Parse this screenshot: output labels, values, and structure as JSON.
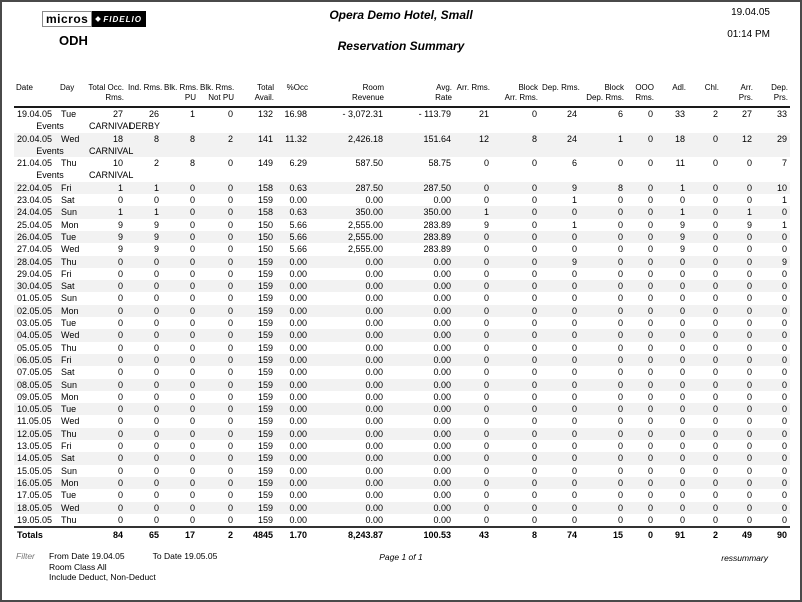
{
  "header": {
    "logo_micros": "micros",
    "logo_fidelio": "FIDELIO",
    "property_code": "ODH",
    "hotel_name": "Opera Demo Hotel, Small",
    "report_title": "Reservation Summary",
    "print_date": "19.04.05",
    "print_time": "01:14 PM"
  },
  "colors": {
    "shaded_row": "#f2f2f2",
    "page_border": "#4a4a4a",
    "logo_bg": "#000000"
  },
  "table": {
    "events_label": "Events",
    "totals_label": "Totals",
    "columns": [
      {
        "id": "date",
        "l1": "Date",
        "l2": "",
        "align": "al",
        "w": 44
      },
      {
        "id": "day",
        "l1": "Day",
        "l2": "",
        "align": "al",
        "w": 28
      },
      {
        "id": "total_occ_rms",
        "l1": "Total Occ.",
        "l2": "Rms.",
        "align": "ar",
        "w": 40
      },
      {
        "id": "ind_rms",
        "l1": "Ind. Rms.",
        "l2": "",
        "align": "ar",
        "w": 36
      },
      {
        "id": "blk_rms_pu",
        "l1": "Blk. Rms.",
        "l2": "PU",
        "align": "ar",
        "w": 36
      },
      {
        "id": "blk_rms_not_pu",
        "l1": "Blk. Rms.",
        "l2": "Not PU",
        "align": "ar",
        "w": 38
      },
      {
        "id": "total_avail",
        "l1": "Total",
        "l2": "Avail.",
        "align": "ar",
        "w": 40
      },
      {
        "id": "pct_occ",
        "l1": "%Occ",
        "l2": "",
        "align": "ar",
        "w": 34
      },
      {
        "id": "room_revenue",
        "l1": "Room",
        "l2": "Revenue",
        "align": "ar",
        "w": 76
      },
      {
        "id": "avg_rate",
        "l1": "Avg.",
        "l2": "Rate",
        "align": "ar",
        "w": 68
      },
      {
        "id": "arr_rms",
        "l1": "Arr. Rms.",
        "l2": "",
        "align": "ar",
        "w": 38
      },
      {
        "id": "block_arr_rms",
        "l1": "Block",
        "l2": "Arr. Rms.",
        "align": "ar",
        "w": 48
      },
      {
        "id": "dep_rms",
        "l1": "Dep. Rms.",
        "l2": "",
        "align": "ar",
        "w": 40
      },
      {
        "id": "block_dep_rms",
        "l1": "Block",
        "l2": "Dep. Rms.",
        "align": "ar",
        "w": 46
      },
      {
        "id": "ooo_rms",
        "l1": "OOO",
        "l2": "Rms.",
        "align": "ar",
        "w": 30
      },
      {
        "id": "adl",
        "l1": "Adl.",
        "l2": "",
        "align": "ar",
        "w": 32
      },
      {
        "id": "chl",
        "l1": "Chl.",
        "l2": "",
        "align": "ar",
        "w": 33
      },
      {
        "id": "arr_prs",
        "l1": "Arr.",
        "l2": "Prs.",
        "align": "ar",
        "w": 34
      },
      {
        "id": "dep_prs",
        "l1": "Dep.",
        "l2": "Prs.",
        "align": "ar",
        "w": 35
      }
    ],
    "rows": [
      {
        "date": "19.04.05",
        "day": "Tue",
        "values": [
          "27",
          "26",
          "1",
          "0",
          "132",
          "16.98",
          "- 3,072.31",
          "- 113.79",
          "21",
          "0",
          "24",
          "6",
          "0",
          "33",
          "2",
          "27",
          "33"
        ],
        "events": [
          "CARNIVAL",
          "DERBY"
        ]
      },
      {
        "date": "20.04.05",
        "day": "Wed",
        "values": [
          "18",
          "8",
          "8",
          "2",
          "141",
          "11.32",
          "2,426.18",
          "151.64",
          "12",
          "8",
          "24",
          "1",
          "0",
          "18",
          "0",
          "12",
          "29"
        ],
        "events": [
          "CARNIVAL"
        ]
      },
      {
        "date": "21.04.05",
        "day": "Thu",
        "values": [
          "10",
          "2",
          "8",
          "0",
          "149",
          "6.29",
          "587.50",
          "58.75",
          "0",
          "0",
          "6",
          "0",
          "0",
          "11",
          "0",
          "0",
          "7"
        ],
        "events": [
          "CARNIVAL"
        ]
      },
      {
        "date": "22.04.05",
        "day": "Fri",
        "values": [
          "1",
          "1",
          "0",
          "0",
          "158",
          "0.63",
          "287.50",
          "287.50",
          "0",
          "0",
          "9",
          "8",
          "0",
          "1",
          "0",
          "0",
          "10"
        ]
      },
      {
        "date": "23.04.05",
        "day": "Sat",
        "values": [
          "0",
          "0",
          "0",
          "0",
          "159",
          "0.00",
          "0.00",
          "0.00",
          "0",
          "0",
          "1",
          "0",
          "0",
          "0",
          "0",
          "0",
          "1"
        ]
      },
      {
        "date": "24.04.05",
        "day": "Sun",
        "values": [
          "1",
          "1",
          "0",
          "0",
          "158",
          "0.63",
          "350.00",
          "350.00",
          "1",
          "0",
          "0",
          "0",
          "0",
          "1",
          "0",
          "1",
          "0"
        ]
      },
      {
        "date": "25.04.05",
        "day": "Mon",
        "values": [
          "9",
          "9",
          "0",
          "0",
          "150",
          "5.66",
          "2,555.00",
          "283.89",
          "9",
          "0",
          "1",
          "0",
          "0",
          "9",
          "0",
          "9",
          "1"
        ]
      },
      {
        "date": "26.04.05",
        "day": "Tue",
        "values": [
          "9",
          "9",
          "0",
          "0",
          "150",
          "5.66",
          "2,555.00",
          "283.89",
          "0",
          "0",
          "0",
          "0",
          "0",
          "9",
          "0",
          "0",
          "0"
        ]
      },
      {
        "date": "27.04.05",
        "day": "Wed",
        "values": [
          "9",
          "9",
          "0",
          "0",
          "150",
          "5.66",
          "2,555.00",
          "283.89",
          "0",
          "0",
          "0",
          "0",
          "0",
          "9",
          "0",
          "0",
          "0"
        ]
      },
      {
        "date": "28.04.05",
        "day": "Thu",
        "values": [
          "0",
          "0",
          "0",
          "0",
          "159",
          "0.00",
          "0.00",
          "0.00",
          "0",
          "0",
          "9",
          "0",
          "0",
          "0",
          "0",
          "0",
          "9"
        ]
      },
      {
        "date": "29.04.05",
        "day": "Fri",
        "values": [
          "0",
          "0",
          "0",
          "0",
          "159",
          "0.00",
          "0.00",
          "0.00",
          "0",
          "0",
          "0",
          "0",
          "0",
          "0",
          "0",
          "0",
          "0"
        ]
      },
      {
        "date": "30.04.05",
        "day": "Sat",
        "values": [
          "0",
          "0",
          "0",
          "0",
          "159",
          "0.00",
          "0.00",
          "0.00",
          "0",
          "0",
          "0",
          "0",
          "0",
          "0",
          "0",
          "0",
          "0"
        ]
      },
      {
        "date": "01.05.05",
        "day": "Sun",
        "values": [
          "0",
          "0",
          "0",
          "0",
          "159",
          "0.00",
          "0.00",
          "0.00",
          "0",
          "0",
          "0",
          "0",
          "0",
          "0",
          "0",
          "0",
          "0"
        ]
      },
      {
        "date": "02.05.05",
        "day": "Mon",
        "values": [
          "0",
          "0",
          "0",
          "0",
          "159",
          "0.00",
          "0.00",
          "0.00",
          "0",
          "0",
          "0",
          "0",
          "0",
          "0",
          "0",
          "0",
          "0"
        ]
      },
      {
        "date": "03.05.05",
        "day": "Tue",
        "values": [
          "0",
          "0",
          "0",
          "0",
          "159",
          "0.00",
          "0.00",
          "0.00",
          "0",
          "0",
          "0",
          "0",
          "0",
          "0",
          "0",
          "0",
          "0"
        ]
      },
      {
        "date": "04.05.05",
        "day": "Wed",
        "values": [
          "0",
          "0",
          "0",
          "0",
          "159",
          "0.00",
          "0.00",
          "0.00",
          "0",
          "0",
          "0",
          "0",
          "0",
          "0",
          "0",
          "0",
          "0"
        ]
      },
      {
        "date": "05.05.05",
        "day": "Thu",
        "values": [
          "0",
          "0",
          "0",
          "0",
          "159",
          "0.00",
          "0.00",
          "0.00",
          "0",
          "0",
          "0",
          "0",
          "0",
          "0",
          "0",
          "0",
          "0"
        ]
      },
      {
        "date": "06.05.05",
        "day": "Fri",
        "values": [
          "0",
          "0",
          "0",
          "0",
          "159",
          "0.00",
          "0.00",
          "0.00",
          "0",
          "0",
          "0",
          "0",
          "0",
          "0",
          "0",
          "0",
          "0"
        ]
      },
      {
        "date": "07.05.05",
        "day": "Sat",
        "values": [
          "0",
          "0",
          "0",
          "0",
          "159",
          "0.00",
          "0.00",
          "0.00",
          "0",
          "0",
          "0",
          "0",
          "0",
          "0",
          "0",
          "0",
          "0"
        ]
      },
      {
        "date": "08.05.05",
        "day": "Sun",
        "values": [
          "0",
          "0",
          "0",
          "0",
          "159",
          "0.00",
          "0.00",
          "0.00",
          "0",
          "0",
          "0",
          "0",
          "0",
          "0",
          "0",
          "0",
          "0"
        ]
      },
      {
        "date": "09.05.05",
        "day": "Mon",
        "values": [
          "0",
          "0",
          "0",
          "0",
          "159",
          "0.00",
          "0.00",
          "0.00",
          "0",
          "0",
          "0",
          "0",
          "0",
          "0",
          "0",
          "0",
          "0"
        ]
      },
      {
        "date": "10.05.05",
        "day": "Tue",
        "values": [
          "0",
          "0",
          "0",
          "0",
          "159",
          "0.00",
          "0.00",
          "0.00",
          "0",
          "0",
          "0",
          "0",
          "0",
          "0",
          "0",
          "0",
          "0"
        ]
      },
      {
        "date": "11.05.05",
        "day": "Wed",
        "values": [
          "0",
          "0",
          "0",
          "0",
          "159",
          "0.00",
          "0.00",
          "0.00",
          "0",
          "0",
          "0",
          "0",
          "0",
          "0",
          "0",
          "0",
          "0"
        ]
      },
      {
        "date": "12.05.05",
        "day": "Thu",
        "values": [
          "0",
          "0",
          "0",
          "0",
          "159",
          "0.00",
          "0.00",
          "0.00",
          "0",
          "0",
          "0",
          "0",
          "0",
          "0",
          "0",
          "0",
          "0"
        ]
      },
      {
        "date": "13.05.05",
        "day": "Fri",
        "values": [
          "0",
          "0",
          "0",
          "0",
          "159",
          "0.00",
          "0.00",
          "0.00",
          "0",
          "0",
          "0",
          "0",
          "0",
          "0",
          "0",
          "0",
          "0"
        ]
      },
      {
        "date": "14.05.05",
        "day": "Sat",
        "values": [
          "0",
          "0",
          "0",
          "0",
          "159",
          "0.00",
          "0.00",
          "0.00",
          "0",
          "0",
          "0",
          "0",
          "0",
          "0",
          "0",
          "0",
          "0"
        ]
      },
      {
        "date": "15.05.05",
        "day": "Sun",
        "values": [
          "0",
          "0",
          "0",
          "0",
          "159",
          "0.00",
          "0.00",
          "0.00",
          "0",
          "0",
          "0",
          "0",
          "0",
          "0",
          "0",
          "0",
          "0"
        ]
      },
      {
        "date": "16.05.05",
        "day": "Mon",
        "values": [
          "0",
          "0",
          "0",
          "0",
          "159",
          "0.00",
          "0.00",
          "0.00",
          "0",
          "0",
          "0",
          "0",
          "0",
          "0",
          "0",
          "0",
          "0"
        ]
      },
      {
        "date": "17.05.05",
        "day": "Tue",
        "values": [
          "0",
          "0",
          "0",
          "0",
          "159",
          "0.00",
          "0.00",
          "0.00",
          "0",
          "0",
          "0",
          "0",
          "0",
          "0",
          "0",
          "0",
          "0"
        ]
      },
      {
        "date": "18.05.05",
        "day": "Wed",
        "values": [
          "0",
          "0",
          "0",
          "0",
          "159",
          "0.00",
          "0.00",
          "0.00",
          "0",
          "0",
          "0",
          "0",
          "0",
          "0",
          "0",
          "0",
          "0"
        ]
      },
      {
        "date": "19.05.05",
        "day": "Thu",
        "values": [
          "0",
          "0",
          "0",
          "0",
          "159",
          "0.00",
          "0.00",
          "0.00",
          "0",
          "0",
          "0",
          "0",
          "0",
          "0",
          "0",
          "0",
          "0"
        ]
      }
    ],
    "totals": [
      "84",
      "65",
      "17",
      "2",
      "4845",
      "1.70",
      "8,243.87",
      "100.53",
      "43",
      "8",
      "74",
      "15",
      "0",
      "91",
      "2",
      "49",
      "90"
    ]
  },
  "footer": {
    "filter_label": "Filter",
    "from_date": "From Date 19.04.05",
    "to_date": "To Date 19.05.05",
    "room_class": "Room Class All",
    "include": "Include Deduct, Non-Deduct",
    "page_info": "Page 1 of 1",
    "report_code": "ressummary"
  }
}
